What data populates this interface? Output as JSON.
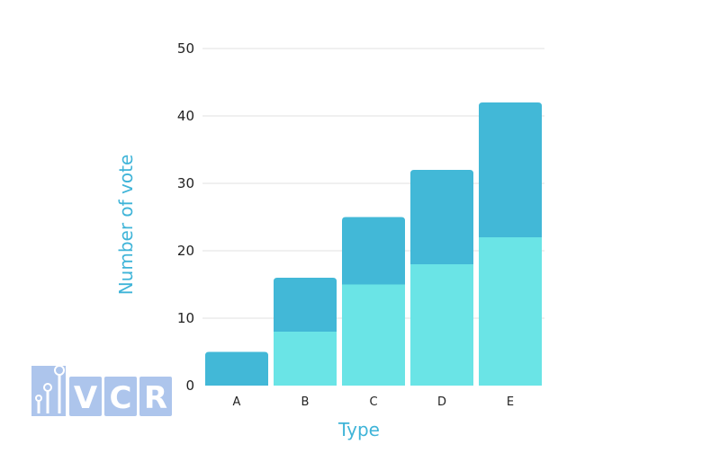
{
  "chart_data": {
    "type": "bar",
    "stacked": true,
    "categories": [
      "A",
      "B",
      "C",
      "D",
      "E"
    ],
    "series": [
      {
        "values": [
          0,
          8,
          15,
          18,
          22
        ]
      },
      {
        "values": [
          5,
          8,
          10,
          14,
          20
        ]
      }
    ],
    "totals": [
      5,
      16,
      25,
      32,
      42
    ],
    "xlabel": "Type",
    "ylabel": "Number of vote",
    "ylim": [
      0,
      50
    ],
    "yticks": [
      0,
      10,
      20,
      30,
      40,
      50
    ],
    "grid": "horizontal",
    "colors": {
      "bottom": "#6ae4e6",
      "top": "#42b8d7",
      "grid": "#e2e2e2",
      "axis_title": "#3fb4d8"
    }
  },
  "logo": {
    "text": "VCR",
    "color": "#9fbbe9"
  }
}
